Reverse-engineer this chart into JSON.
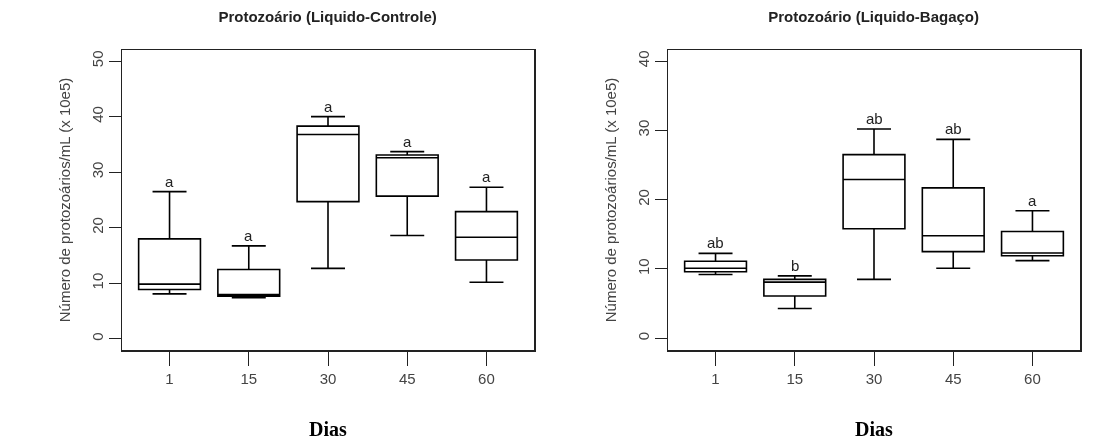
{
  "chart_data": [
    {
      "type": "box",
      "title": "Protozoário (Liquido-Controle)",
      "xlabel": "Dias",
      "ylabel": "Número de protozoários/mL (x 10e5)",
      "categories": [
        "1",
        "15",
        "30",
        "45",
        "60"
      ],
      "boxes": [
        {
          "low": 8.1,
          "q1": 8.9,
          "median": 9.85,
          "q3": 18.0,
          "high": 26.5
        },
        {
          "low": 7.4,
          "q1": 7.7,
          "median": 8.0,
          "q3": 12.5,
          "high": 16.75
        },
        {
          "low": 12.7,
          "q1": 24.7,
          "median": 36.8,
          "q3": 38.3,
          "high": 40.0
        },
        {
          "low": 18.6,
          "q1": 25.7,
          "median": 32.6,
          "q3": 33.1,
          "high": 33.7
        },
        {
          "low": 10.2,
          "q1": 14.2,
          "median": 18.3,
          "q3": 22.9,
          "high": 27.3
        }
      ],
      "ylim": [
        -2,
        52
      ],
      "yticks": [
        0,
        10,
        20,
        30,
        40,
        50
      ],
      "annotations": [
        {
          "text": "a",
          "x": "1",
          "y": 26.5
        },
        {
          "text": "a",
          "x": "15",
          "y": 16.75
        },
        {
          "text": "a",
          "x": "30",
          "y": 40.0
        },
        {
          "text": "a",
          "x": "45",
          "y": 33.7
        },
        {
          "text": "a",
          "x": "60",
          "y": 27.3
        }
      ]
    },
    {
      "type": "box",
      "title": "Protozoário (Liquido-Bagaço)",
      "xlabel": "Dias",
      "ylabel": "Número de protozoários/mL (x 10e5)",
      "categories": [
        "1",
        "15",
        "30",
        "45",
        "60"
      ],
      "boxes": [
        {
          "low": 9.2,
          "q1": 9.6,
          "median": 10.1,
          "q3": 11.1,
          "high": 12.25
        },
        {
          "low": 4.3,
          "q1": 6.1,
          "median": 8.1,
          "q3": 8.5,
          "high": 9.0
        },
        {
          "low": 8.5,
          "q1": 15.8,
          "median": 22.9,
          "q3": 26.5,
          "high": 30.2
        },
        {
          "low": 10.1,
          "q1": 12.5,
          "median": 14.8,
          "q3": 21.7,
          "high": 28.7
        },
        {
          "low": 11.2,
          "q1": 11.9,
          "median": 12.3,
          "q3": 15.4,
          "high": 18.4
        }
      ],
      "ylim": [
        -1.7,
        41.6
      ],
      "yticks": [
        0,
        10,
        20,
        30,
        40
      ],
      "annotations": [
        {
          "text": "ab",
          "x": "1",
          "y": 12.25
        },
        {
          "text": "b",
          "x": "15",
          "y": 9.0
        },
        {
          "text": "ab",
          "x": "30",
          "y": 30.2
        },
        {
          "text": "ab",
          "x": "45",
          "y": 28.7
        },
        {
          "text": "a",
          "x": "60",
          "y": 18.4
        }
      ]
    }
  ]
}
